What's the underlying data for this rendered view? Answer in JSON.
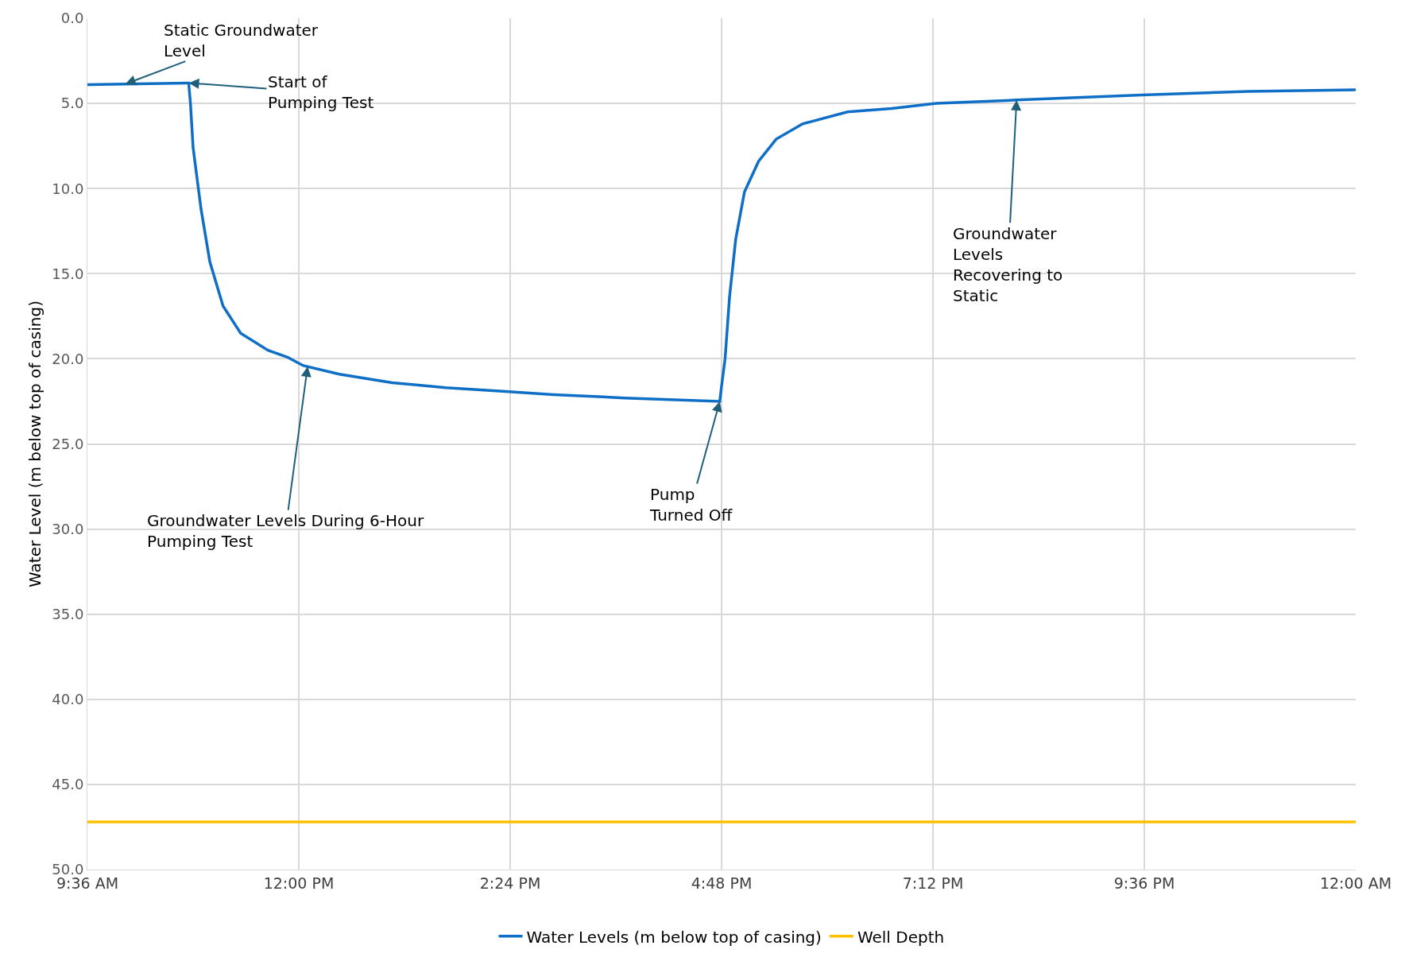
{
  "chart_data": {
    "type": "line",
    "ylabel": "Water Level (m below top of casing)",
    "xlim": [
      9.6,
      24
    ],
    "ylim": [
      50,
      0
    ],
    "xticks": [
      {
        "value": 9.6,
        "label": "9:36 AM"
      },
      {
        "value": 12,
        "label": "12:00 PM"
      },
      {
        "value": 14.4,
        "label": "2:24 PM"
      },
      {
        "value": 16.8,
        "label": "4:48 PM"
      },
      {
        "value": 19.2,
        "label": "7:12 PM"
      },
      {
        "value": 21.6,
        "label": "9:36 PM"
      },
      {
        "value": 24,
        "label": "12:00 AM"
      }
    ],
    "yticks": [
      {
        "value": 0,
        "label": "0.0"
      },
      {
        "value": 5,
        "label": "5.0"
      },
      {
        "value": 10,
        "label": "10.0"
      },
      {
        "value": 15,
        "label": "15.0"
      },
      {
        "value": 20,
        "label": "20.0"
      },
      {
        "value": 25,
        "label": "25.0"
      },
      {
        "value": 30,
        "label": "30.0"
      },
      {
        "value": 35,
        "label": "35.0"
      },
      {
        "value": 40,
        "label": "40.0"
      },
      {
        "value": 45,
        "label": "45.0"
      },
      {
        "value": 50,
        "label": "50.0"
      }
    ],
    "series": [
      {
        "name": "Water Levels (m below top of casing)",
        "color": "#0f6fc6",
        "x": [
          9.6,
          10.73,
          10.75,
          10.77,
          10.8,
          10.89,
          10.99,
          11.14,
          11.34,
          11.65,
          11.87,
          12.05,
          12.46,
          13.06,
          13.67,
          14.28,
          14.89,
          15.7,
          16.78,
          16.8,
          16.84,
          16.89,
          16.96,
          17.06,
          17.22,
          17.42,
          17.72,
          18.23,
          18.73,
          19.24,
          20.15,
          21.57,
          22.78,
          24
        ],
        "values": [
          3.9,
          3.8,
          3.8,
          5.0,
          7.6,
          11.2,
          14.3,
          16.9,
          18.5,
          19.5,
          19.9,
          20.4,
          20.9,
          21.4,
          21.7,
          21.9,
          22.1,
          22.3,
          22.5,
          21.6,
          20.0,
          16.4,
          13.0,
          10.2,
          8.4,
          7.1,
          6.2,
          5.5,
          5.3,
          5.0,
          4.8,
          4.5,
          4.3,
          4.2
        ]
      },
      {
        "name": "Well Depth",
        "color": "#ffc000",
        "x": [
          9.6,
          24
        ],
        "values": [
          47.2,
          47.2
        ]
      }
    ],
    "annotations": [
      {
        "text": "Static Groundwater Level",
        "x": 10.03,
        "y": 3.86
      },
      {
        "text": "Start of Pumping Test",
        "x": 10.75,
        "y": 3.8
      },
      {
        "text": "Groundwater Levels During 6-Hour Pumping Test",
        "x": 12.1,
        "y": 20.45
      },
      {
        "text": "Pump Turned Off",
        "x": 16.78,
        "y": 22.5
      },
      {
        "text": "Groundwater Levels Recovering to Static",
        "x": 20.15,
        "y": 4.8
      }
    ],
    "grid": true,
    "legend": "bottom",
    "marker": "none",
    "line_style": "solid"
  }
}
